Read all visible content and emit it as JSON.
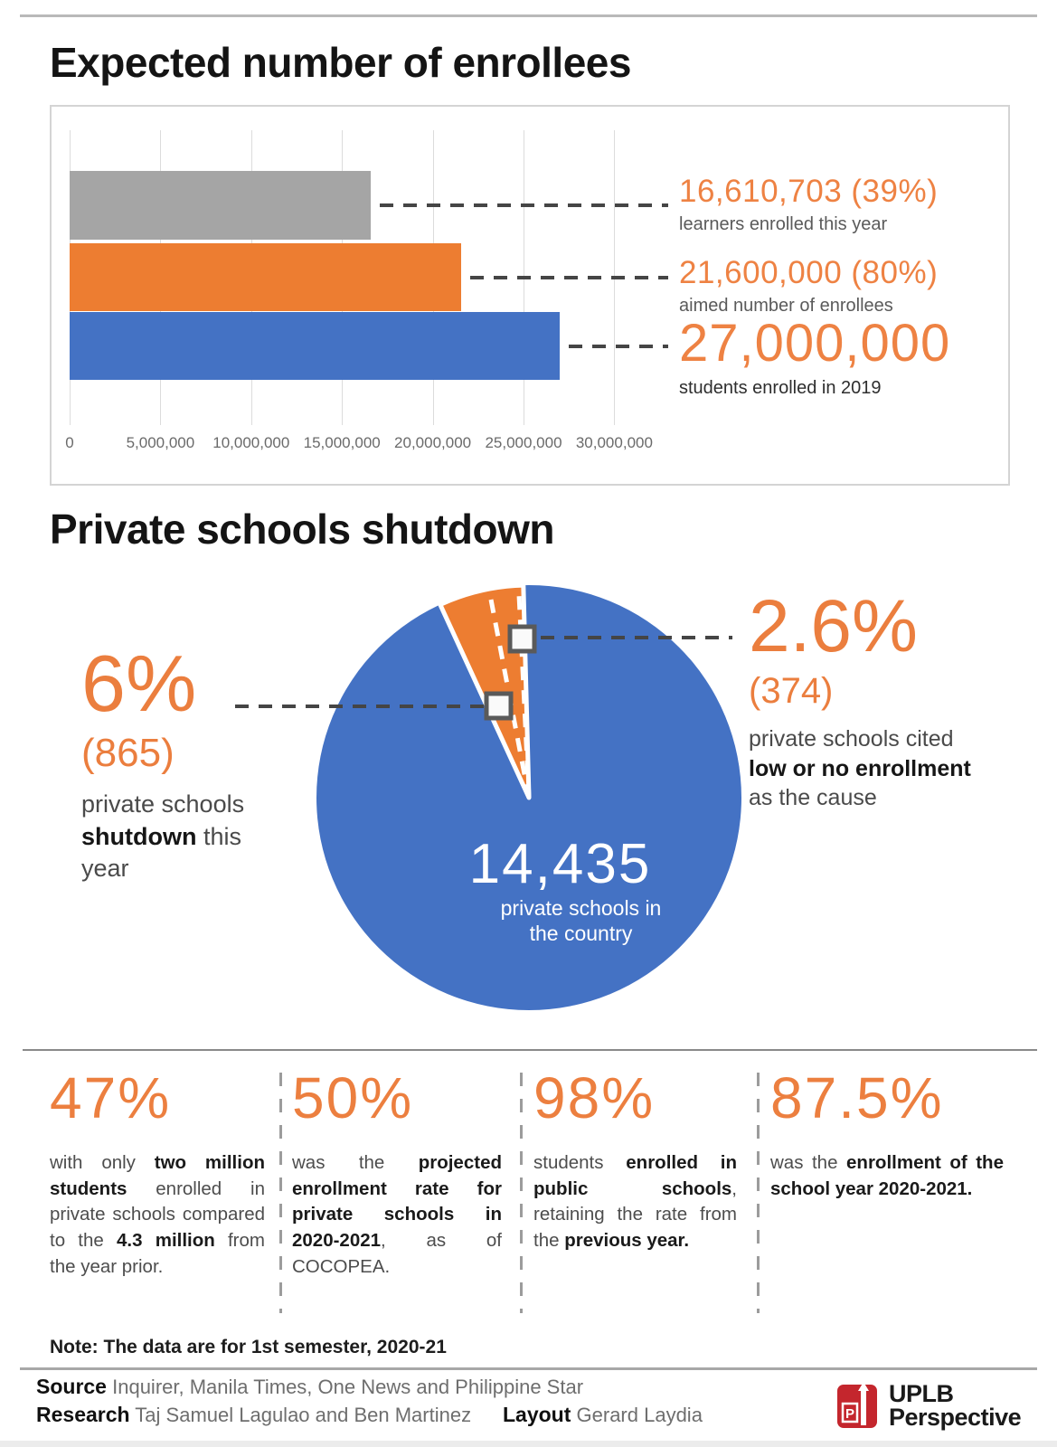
{
  "colors": {
    "accent_orange": "#ED7D31",
    "accent_blue": "#4472C4",
    "bar_gray": "#A5A5A5",
    "logo_red": "#C4262D",
    "leader_dash": "#454545"
  },
  "chart_data": [
    {
      "type": "bar",
      "orientation": "horizontal",
      "title": "Expected number of enrollees",
      "categories": [
        "learners enrolled this year",
        "aimed number of enrollees",
        "students enrolled in 2019"
      ],
      "values": [
        16610703,
        21600000,
        27000000
      ],
      "value_labels": [
        "16,610,703 (39%)",
        "21,600,000 (80%)",
        "27,000,000"
      ],
      "colors": [
        "#A5A5A5",
        "#ED7D31",
        "#4472C4"
      ],
      "xlim": [
        0,
        30000000
      ],
      "x_ticks": [
        "0",
        "5,000,000",
        "10,000,000",
        "15,000,000",
        "20,000,000",
        "25,000,000",
        "30,000,000"
      ],
      "grid": true,
      "legend": "none"
    },
    {
      "type": "pie",
      "title": "Private schools shutdown",
      "total_label": "14,435",
      "total_sublabel_line1": "private schools in",
      "total_sublabel_line2": "the country",
      "slices": [
        {
          "label": "private schools in the country",
          "value": 14435,
          "pct": 94.0,
          "color": "#4472C4"
        },
        {
          "label": "private schools shutdown this year",
          "value": 865,
          "pct": 6.0,
          "color": "#ED7D31"
        },
        {
          "label": "private schools cited low or no enrollment as the cause (subset of shutdown)",
          "value": 374,
          "pct": 2.6,
          "color": "#ED7D31"
        }
      ],
      "callouts": {
        "left": {
          "pct": "6%",
          "count": "(865)",
          "parts": [
            {
              "t": "private schools ",
              "b": 0
            },
            {
              "t": "shutdown",
              "b": 1
            },
            {
              "t": " this year",
              "b": 0
            }
          ]
        },
        "right": {
          "pct": "2.6%",
          "count": "(374)",
          "parts": [
            {
              "t": "private schools cited ",
              "b": 0
            },
            {
              "t": "low or no enrollment",
              "b": 1
            },
            {
              "t": " as the cause",
              "b": 0
            }
          ]
        }
      }
    }
  ],
  "stats": {
    "items": [
      {
        "value": "47%",
        "parts": [
          {
            "t": "with only ",
            "b": 0
          },
          {
            "t": "two million students",
            "b": 1
          },
          {
            "t": " enrolled in private schools compared to the ",
            "b": 0
          },
          {
            "t": "4.3 million",
            "b": 1
          },
          {
            "t": " from the year prior.",
            "b": 0
          }
        ]
      },
      {
        "value": "50%",
        "parts": [
          {
            "t": "was the ",
            "b": 0
          },
          {
            "t": "projected enrollment rate for private schools in 2020-2021",
            "b": 1
          },
          {
            "t": ", as of COCOPEA.",
            "b": 0
          }
        ]
      },
      {
        "value": "98%",
        "parts": [
          {
            "t": "students ",
            "b": 0
          },
          {
            "t": "enrolled in public schools",
            "b": 1
          },
          {
            "t": ", retaining the rate from the ",
            "b": 0
          },
          {
            "t": "previous year.",
            "b": 1
          }
        ]
      },
      {
        "value": "87.5%",
        "parts": [
          {
            "t": "was the ",
            "b": 0
          },
          {
            "t": "enrollment of the school year 2020-2021.",
            "b": 1
          }
        ]
      }
    ]
  },
  "footer": {
    "note": "Note: The data are for 1st semester, 2020-21",
    "source_label": "Source",
    "source": "Inquirer, Manila Times, One News and Philippine Star",
    "research_label": "Research",
    "research": "Taj Samuel Lagulao and Ben Martinez",
    "layout_label": "Layout",
    "layout": "Gerard Laydia",
    "logo": {
      "monogram": "P",
      "line1": "UPLB",
      "line2": "Perspective"
    }
  }
}
